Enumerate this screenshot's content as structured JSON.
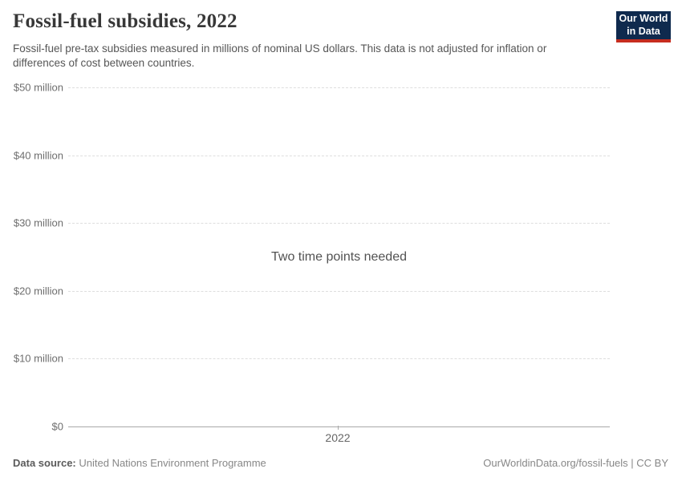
{
  "header": {
    "title": "Fossil-fuel subsidies, 2022",
    "subtitle": "Fossil-fuel pre-tax subsidies measured in millions of nominal US dollars. This data is not adjusted for inflation or differences of cost between countries."
  },
  "logo": {
    "line1": "Our World",
    "line2": "in Data",
    "bg_color": "#0f2a4e",
    "accent_color": "#c62d1f"
  },
  "chart_data": {
    "type": "line",
    "title": "Fossil-fuel subsidies, 2022",
    "ylabel": "",
    "xlabel": "",
    "unit": "millions of nominal US dollars",
    "ylim": [
      0,
      50000000
    ],
    "y_ticks": [
      {
        "label": "$50 million",
        "value": 50
      },
      {
        "label": "$40 million",
        "value": 40
      },
      {
        "label": "$30 million",
        "value": 30
      },
      {
        "label": "$20 million",
        "value": 20
      },
      {
        "label": "$10 million",
        "value": 10
      },
      {
        "label": "$0",
        "value": 0
      }
    ],
    "x_ticks": [
      "2022"
    ],
    "series": [],
    "grid": true,
    "empty_state_message": "Two time points needed"
  },
  "message": "Two time points needed",
  "footer": {
    "source_label": "Data source:",
    "source_value": "United Nations Environment Programme",
    "attribution": "OurWorldinData.org/fossil-fuels | CC BY"
  }
}
